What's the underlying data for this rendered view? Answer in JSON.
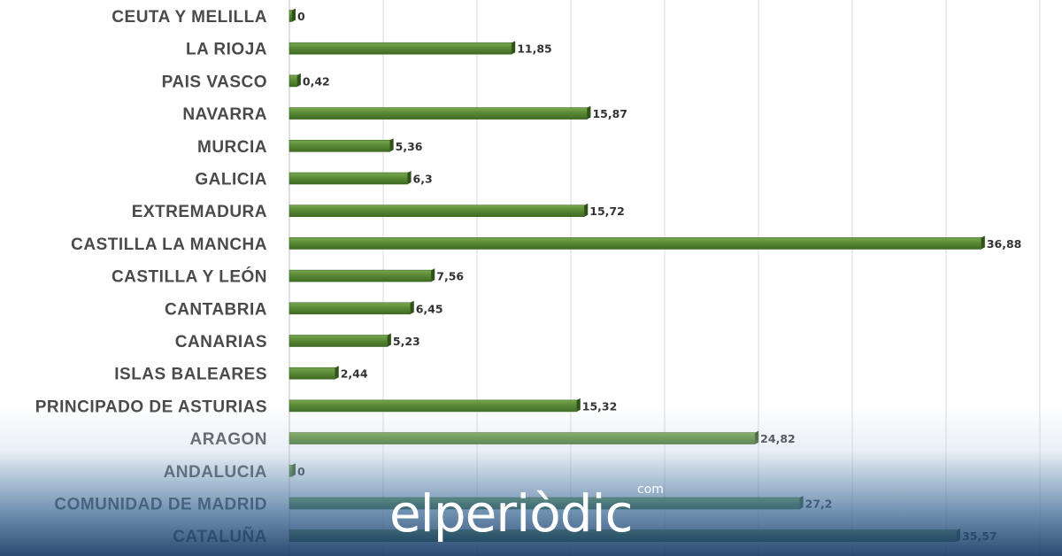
{
  "chart_data": {
    "type": "bar",
    "orientation": "horizontal",
    "categories": [
      "CEUTA Y MELILLA",
      "LA RIOJA",
      "PAIS VASCO",
      "NAVARRA",
      "MURCIA",
      "GALICIA",
      "EXTREMADURA",
      "CASTILLA LA MANCHA",
      "CASTILLA Y LEÓN",
      "CANTABRIA",
      "CANARIAS",
      "ISLAS BALEARES",
      "PRINCIPADO DE ASTURIAS",
      "ARAGON",
      "ANDALUCIA",
      "COMUNIDAD DE MADRID",
      "CATALUÑA"
    ],
    "values": [
      0,
      11.85,
      0.42,
      15.87,
      5.36,
      6.3,
      15.72,
      36.88,
      7.56,
      6.45,
      5.23,
      2.44,
      15.32,
      24.82,
      0,
      27.2,
      35.57
    ],
    "value_labels": [
      "0",
      "11,85",
      "0,42",
      "15,87",
      "5,36",
      "6,3",
      "15,72",
      "36,88",
      "7,56",
      "6,45",
      "5,23",
      "2,44",
      "15,32",
      "24,82",
      "0",
      "27,2",
      "35,57"
    ],
    "xlim": [
      0,
      40
    ],
    "grid": true,
    "bar_color": "#5a8a36",
    "title": "",
    "xlabel": "",
    "ylabel": ""
  },
  "brand": {
    "name": "elperiòdic",
    "tld": "com"
  }
}
